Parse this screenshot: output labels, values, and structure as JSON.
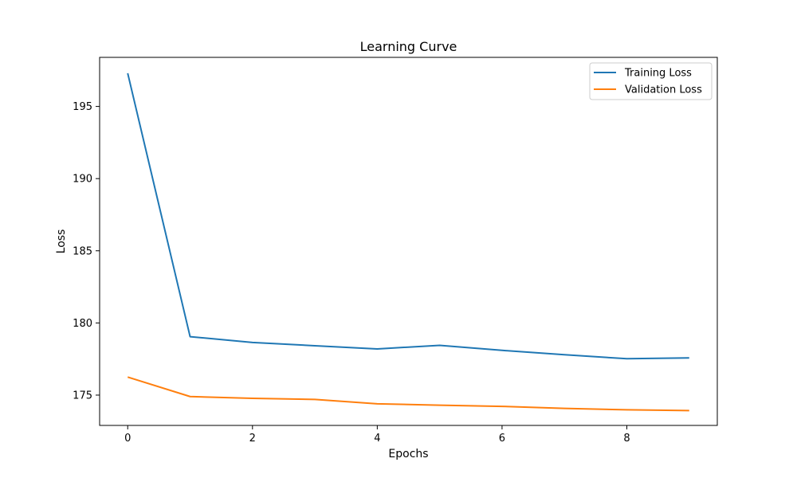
{
  "chart_data": {
    "type": "line",
    "title": "Learning Curve",
    "xlabel": "Epochs",
    "ylabel": "Loss",
    "x": [
      0,
      1,
      2,
      3,
      4,
      5,
      6,
      7,
      8,
      9
    ],
    "xlim": [
      -0.45,
      9.45
    ],
    "ylim": [
      172.9,
      198.4
    ],
    "xticks": [
      0,
      2,
      4,
      6,
      8
    ],
    "yticks": [
      175,
      180,
      185,
      190,
      195
    ],
    "grid": false,
    "legend_position": "top-right",
    "series": [
      {
        "name": "Training Loss",
        "color": "#1f77b4",
        "values": [
          197.3,
          179.05,
          178.65,
          178.42,
          178.2,
          178.45,
          178.1,
          177.8,
          177.52,
          177.58
        ]
      },
      {
        "name": "Validation Loss",
        "color": "#ff7f0e",
        "values": [
          176.25,
          174.9,
          174.78,
          174.7,
          174.4,
          174.3,
          174.22,
          174.08,
          173.98,
          173.93
        ]
      }
    ]
  }
}
